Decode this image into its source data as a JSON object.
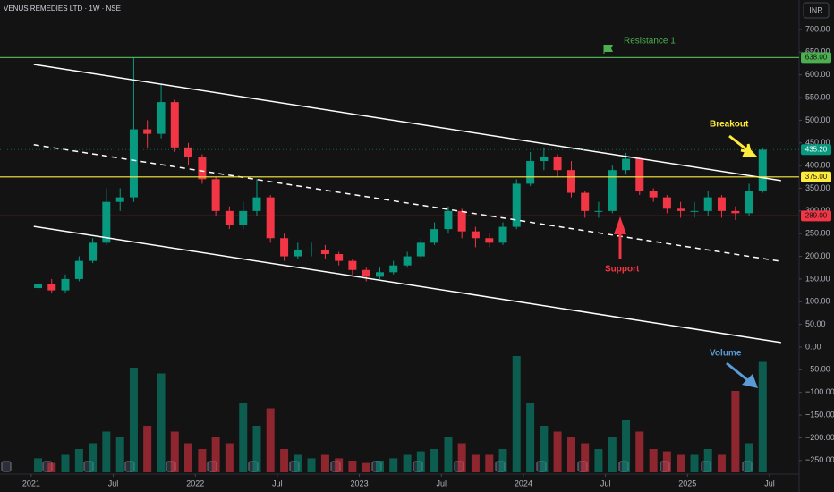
{
  "chart_data": {
    "type": "candlestick",
    "title": "VENUS REMEDIES LTD · 1W · NSE",
    "currency": "INR",
    "x": [
      2021.042,
      2021.125,
      2021.208,
      2021.292,
      2021.375,
      2021.458,
      2021.542,
      2021.625,
      2021.708,
      2021.792,
      2021.875,
      2021.958,
      2022.042,
      2022.125,
      2022.208,
      2022.292,
      2022.375,
      2022.458,
      2022.542,
      2022.625,
      2022.708,
      2022.792,
      2022.875,
      2022.958,
      2023.042,
      2023.125,
      2023.208,
      2023.292,
      2023.375,
      2023.458,
      2023.542,
      2023.625,
      2023.708,
      2023.792,
      2023.875,
      2023.958,
      2024.042,
      2024.125,
      2024.208,
      2024.292,
      2024.375,
      2024.458,
      2024.542,
      2024.625,
      2024.708,
      2024.792,
      2024.875,
      2024.958,
      2025.042,
      2025.125,
      2025.208,
      2025.292,
      2025.375,
      2025.458
    ],
    "open": [
      130,
      140,
      125,
      150,
      190,
      230,
      320,
      330,
      480,
      470,
      540,
      440,
      420,
      370,
      300,
      270,
      300,
      330,
      240,
      200,
      215,
      215,
      205,
      190,
      170,
      155,
      165,
      180,
      200,
      230,
      260,
      300,
      255,
      240,
      230,
      265,
      360,
      410,
      420,
      390,
      340,
      300,
      300,
      390,
      415,
      345,
      330,
      305,
      300,
      300,
      330,
      300,
      295,
      345
    ],
    "high": [
      150,
      150,
      160,
      200,
      240,
      350,
      350,
      638,
      500,
      580,
      545,
      450,
      425,
      375,
      310,
      320,
      370,
      335,
      250,
      230,
      230,
      225,
      210,
      195,
      175,
      175,
      190,
      210,
      240,
      275,
      310,
      305,
      265,
      250,
      275,
      370,
      430,
      440,
      425,
      410,
      345,
      320,
      400,
      428,
      420,
      350,
      335,
      320,
      320,
      345,
      335,
      310,
      360,
      440
    ],
    "low": [
      115,
      120,
      120,
      145,
      185,
      225,
      300,
      320,
      440,
      460,
      430,
      400,
      360,
      290,
      260,
      260,
      290,
      230,
      190,
      195,
      200,
      195,
      180,
      160,
      145,
      150,
      160,
      175,
      195,
      225,
      250,
      240,
      220,
      220,
      225,
      260,
      355,
      390,
      375,
      330,
      285,
      285,
      295,
      380,
      335,
      320,
      295,
      285,
      285,
      290,
      285,
      280,
      290,
      340
    ],
    "close": [
      140,
      125,
      150,
      190,
      230,
      320,
      330,
      480,
      470,
      540,
      440,
      420,
      370,
      300,
      270,
      300,
      330,
      240,
      200,
      215,
      215,
      205,
      190,
      170,
      155,
      165,
      180,
      200,
      230,
      260,
      300,
      255,
      240,
      230,
      265,
      360,
      410,
      420,
      390,
      340,
      300,
      300,
      390,
      415,
      345,
      330,
      305,
      300,
      300,
      330,
      300,
      295,
      345,
      435
    ],
    "volume": [
      12,
      8,
      15,
      20,
      25,
      35,
      30,
      90,
      40,
      85,
      35,
      25,
      20,
      30,
      25,
      60,
      40,
      55,
      20,
      15,
      12,
      15,
      12,
      10,
      8,
      10,
      12,
      15,
      18,
      20,
      30,
      25,
      15,
      15,
      20,
      100,
      60,
      40,
      35,
      30,
      25,
      20,
      30,
      45,
      35,
      20,
      18,
      15,
      15,
      20,
      15,
      70,
      25,
      95
    ],
    "volume_lim": [
      0,
      100
    ],
    "up_color": "#089981",
    "down_color": "#f23645",
    "xlim": [
      2020.81,
      2025.68
    ],
    "xticks": [
      {
        "value": 2021,
        "label": "2021"
      },
      {
        "value": 2021.5,
        "label": "Jul"
      },
      {
        "value": 2022,
        "label": "2022"
      },
      {
        "value": 2022.5,
        "label": "Jul"
      },
      {
        "value": 2023,
        "label": "2023"
      },
      {
        "value": 2023.5,
        "label": "Jul"
      },
      {
        "value": 2024,
        "label": "2024"
      },
      {
        "value": 2024.5,
        "label": "Jul"
      },
      {
        "value": 2025,
        "label": "2025"
      },
      {
        "value": 2025.5,
        "label": "Jul"
      }
    ],
    "ylim": [
      -280,
      765
    ],
    "yticks": [
      {
        "value": 700,
        "label": "700.00"
      },
      {
        "value": 650,
        "label": "650.00"
      },
      {
        "value": 600,
        "label": "600.00"
      },
      {
        "value": 550,
        "label": "550.00"
      },
      {
        "value": 500,
        "label": "500.00"
      },
      {
        "value": 450,
        "label": "450.00"
      },
      {
        "value": 400,
        "label": "400.00"
      },
      {
        "value": 350,
        "label": "350.00"
      },
      {
        "value": 300,
        "label": "300.00"
      },
      {
        "value": 250,
        "label": "250.00"
      },
      {
        "value": 200,
        "label": "200.00"
      },
      {
        "value": 150,
        "label": "150.00"
      },
      {
        "value": 100,
        "label": "100.00"
      },
      {
        "value": 50,
        "label": "50.00"
      },
      {
        "value": 0,
        "label": "0.00"
      },
      {
        "value": -50,
        "label": "−50.00"
      },
      {
        "value": -100,
        "label": "−100.00"
      },
      {
        "value": -150,
        "label": "−150.00"
      },
      {
        "value": -200,
        "label": "−200.00"
      },
      {
        "value": -250,
        "label": "−250.00"
      }
    ],
    "levels": [
      {
        "value": 638,
        "label": "638.00",
        "color": "#4caf50"
      },
      {
        "value": 375,
        "label": "375.00",
        "color": "#ffeb3b"
      },
      {
        "value": 289,
        "label": "289.00",
        "color": "#f23645"
      }
    ],
    "last_price": {
      "value": 435.2,
      "label": "435.20",
      "color": "#089981"
    },
    "trendlines": [
      {
        "x": [
          2021.016,
          2025.57
        ],
        "y": [
          623,
          367
        ],
        "dashed": false
      },
      {
        "x": [
          2021.016,
          2025.57
        ],
        "y": [
          446,
          189
        ],
        "dashed": true
      },
      {
        "x": [
          2021.016,
          2025.57
        ],
        "y": [
          266,
          10
        ],
        "dashed": false
      }
    ],
    "annotations": {
      "resistance": "Resistance 1",
      "breakout": "Breakout",
      "support": "Support",
      "volume": "Volume"
    }
  }
}
